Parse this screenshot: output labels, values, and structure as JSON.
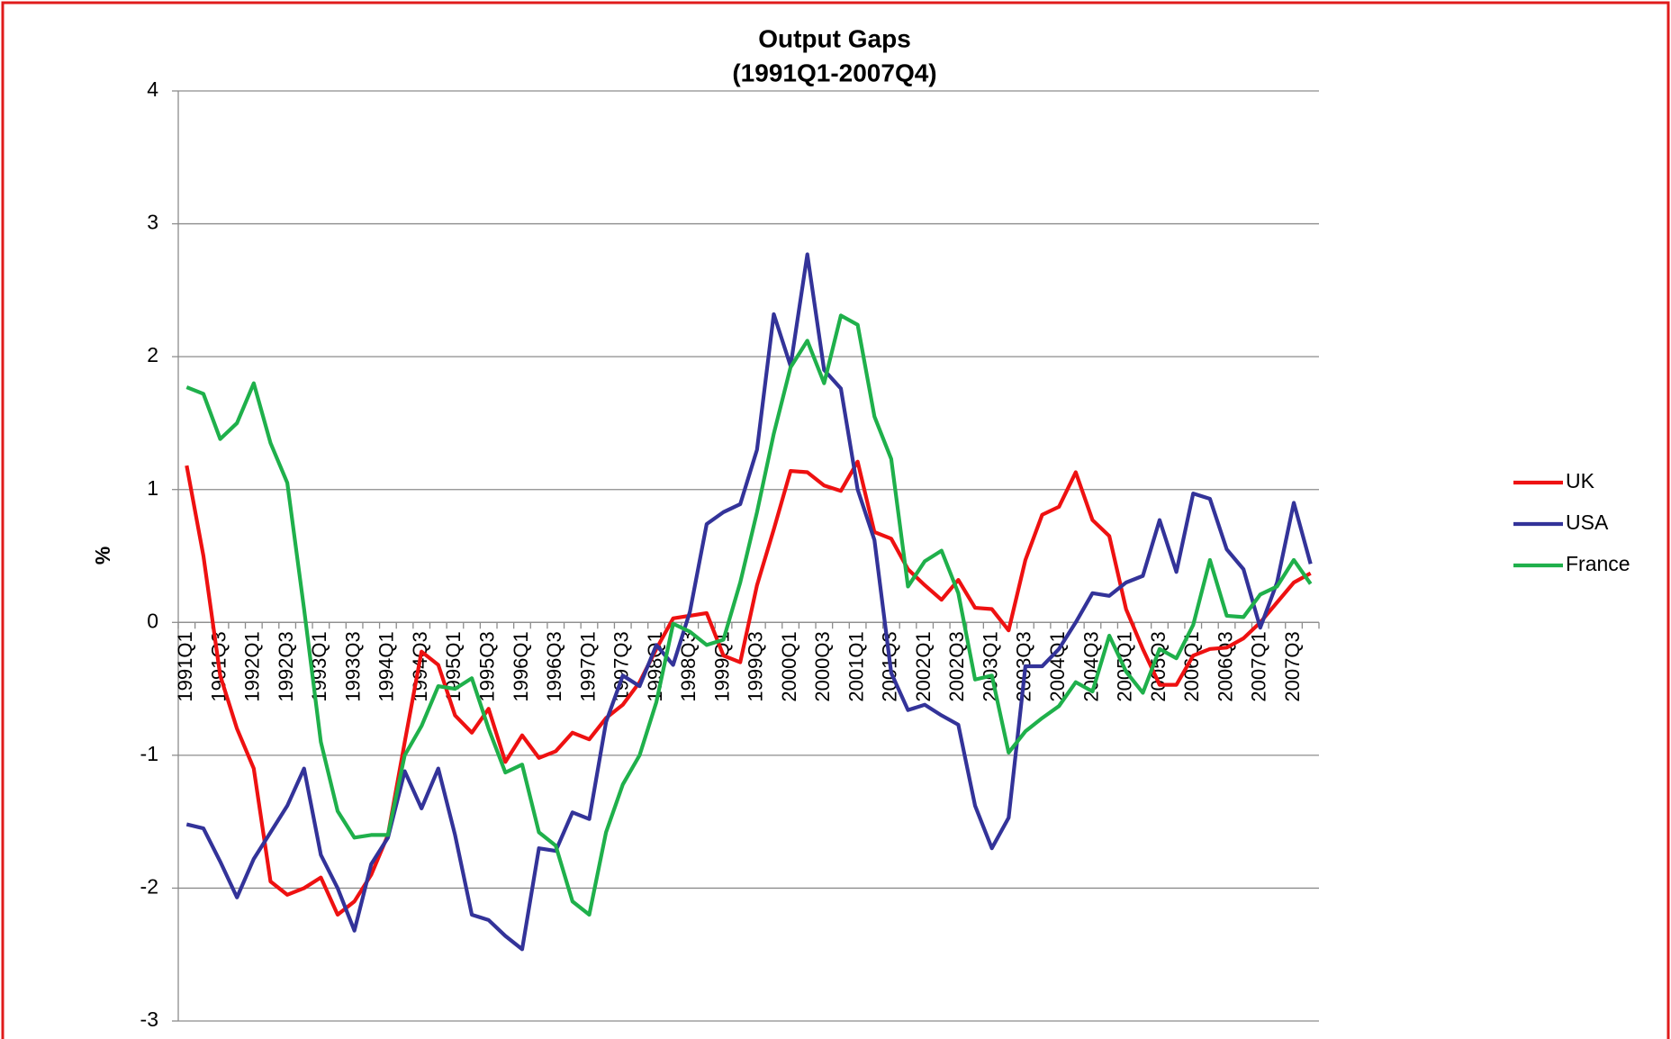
{
  "chart_data": {
    "type": "line",
    "title": "Output Gaps",
    "subtitle": "(1991Q1-2007Q4)",
    "y_label": "%",
    "categories": [
      "1991Q1",
      null,
      "1991Q3",
      null,
      "1992Q1",
      null,
      "1992Q3",
      null,
      "1993Q1",
      null,
      "1993Q3",
      null,
      "1994Q1",
      null,
      "1994Q3",
      null,
      "1995Q1",
      null,
      "1995Q3",
      null,
      "1996Q1",
      null,
      "1996Q3",
      null,
      "1997Q1",
      null,
      "1997Q3",
      null,
      "1998Q1",
      null,
      "1998Q3",
      null,
      "1999Q1",
      null,
      "1999Q3",
      null,
      "2000Q1",
      null,
      "2000Q3",
      null,
      "2001Q1",
      null,
      "2001Q3",
      null,
      "2002Q1",
      null,
      "2002Q3",
      null,
      "2003Q1",
      null,
      "2003Q3",
      null,
      "2004Q1",
      null,
      "2004Q3",
      null,
      "2005Q1",
      null,
      "2005Q3",
      null,
      "2006Q1",
      null,
      "2006Q3",
      null,
      "2007Q1",
      null,
      "2007Q3",
      null
    ],
    "series": [
      {
        "name": "UK",
        "color": "#ee1111",
        "values": [
          1.18,
          0.5,
          -0.4,
          -0.8,
          -1.1,
          -1.95,
          -2.05,
          -2.0,
          -1.92,
          -2.2,
          -2.1,
          -1.9,
          -1.6,
          -0.9,
          -0.22,
          -0.32,
          -0.7,
          -0.83,
          -0.65,
          -1.05,
          -0.85,
          -1.02,
          -0.97,
          -0.83,
          -0.88,
          -0.72,
          -0.62,
          -0.45,
          -0.2,
          0.03,
          0.05,
          0.07,
          -0.25,
          -0.3,
          0.28,
          0.7,
          1.14,
          1.13,
          1.03,
          0.99,
          1.21,
          0.68,
          0.63,
          0.4,
          0.28,
          0.17,
          0.32,
          0.11,
          0.1,
          -0.06,
          0.47,
          0.81,
          0.87,
          1.13,
          0.77,
          0.65,
          0.1,
          -0.2,
          -0.47,
          -0.47,
          -0.25,
          -0.2,
          -0.19,
          -0.12,
          0.0,
          0.15,
          0.3,
          0.37
        ]
      },
      {
        "name": "USA",
        "color": "#333399",
        "values": [
          -1.52,
          -1.55,
          -1.8,
          -2.07,
          -1.78,
          -1.58,
          -1.38,
          -1.1,
          -1.75,
          -2.0,
          -2.32,
          -1.82,
          -1.62,
          -1.12,
          -1.4,
          -1.1,
          -1.6,
          -2.2,
          -2.24,
          -2.36,
          -2.46,
          -1.7,
          -1.72,
          -1.43,
          -1.48,
          -0.75,
          -0.4,
          -0.48,
          -0.17,
          -0.32,
          0.08,
          0.74,
          0.83,
          0.89,
          1.3,
          2.32,
          1.93,
          2.77,
          1.9,
          1.76,
          1.0,
          0.62,
          -0.38,
          -0.66,
          -0.62,
          -0.7,
          -0.77,
          -1.38,
          -1.7,
          -1.47,
          -0.33,
          -0.33,
          -0.2,
          0.0,
          0.22,
          0.2,
          0.3,
          0.35,
          0.77,
          0.38,
          0.97,
          0.93,
          0.55,
          0.4,
          -0.04,
          0.3,
          0.9,
          0.44
        ]
      },
      {
        "name": "France",
        "color": "#1fb04b",
        "values": [
          1.77,
          1.72,
          1.38,
          1.5,
          1.8,
          1.35,
          1.05,
          0.1,
          -0.9,
          -1.42,
          -1.62,
          -1.6,
          -1.6,
          -1.0,
          -0.78,
          -0.48,
          -0.5,
          -0.42,
          -0.8,
          -1.13,
          -1.07,
          -1.58,
          -1.68,
          -2.1,
          -2.2,
          -1.58,
          -1.22,
          -1.0,
          -0.6,
          -0.01,
          -0.07,
          -0.17,
          -0.13,
          0.3,
          0.83,
          1.42,
          1.92,
          2.12,
          1.8,
          2.31,
          2.24,
          1.55,
          1.23,
          0.27,
          0.46,
          0.54,
          0.22,
          -0.43,
          -0.4,
          -0.98,
          -0.82,
          -0.72,
          -0.63,
          -0.45,
          -0.52,
          -0.1,
          -0.37,
          -0.53,
          -0.2,
          -0.27,
          -0.02,
          0.47,
          0.05,
          0.04,
          0.21,
          0.27,
          0.47,
          0.29
        ]
      }
    ],
    "ylim": [
      -3,
      4
    ],
    "yticks": [
      -3,
      -2,
      -1,
      0,
      1,
      2,
      3,
      4
    ],
    "grid": true,
    "legend": "right"
  }
}
